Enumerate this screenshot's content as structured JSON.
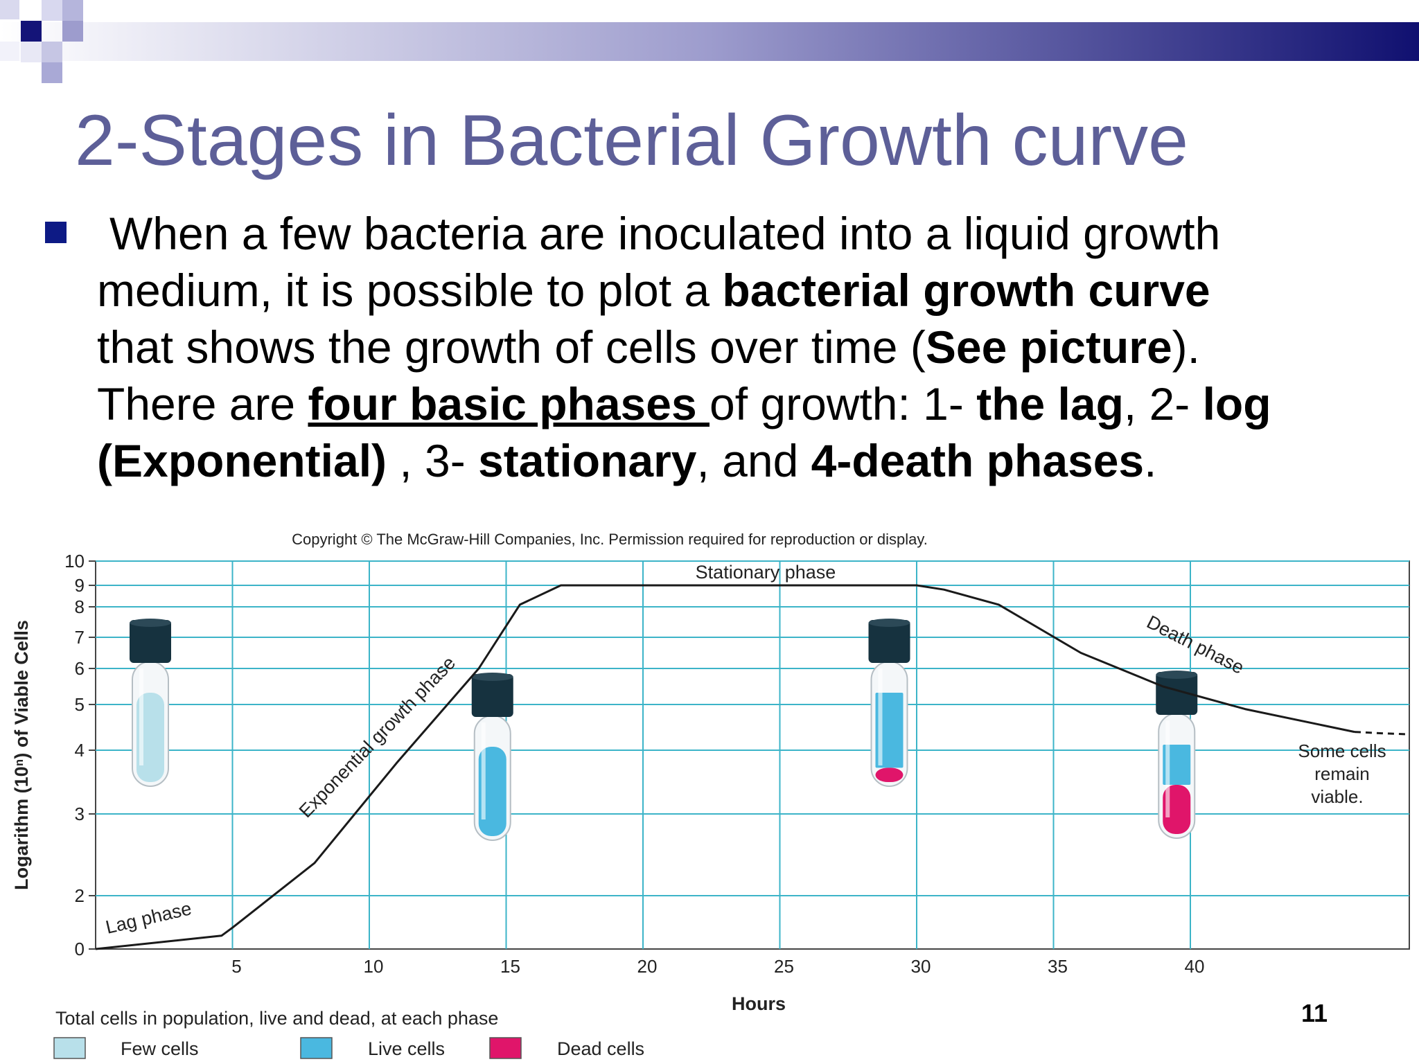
{
  "slide": {
    "title": "2-Stages in Bacterial Growth curve",
    "page_number": "11",
    "body": {
      "l1": "When a few bacteria are inoculated into a liquid growth",
      "l2a": "medium, it is possible to plot a ",
      "l2b": "bacterial growth curve",
      "l3a": "that shows the growth of cells over time (",
      "l3b": "See picture",
      "l3c": ").",
      "l4a": "There are ",
      "l4b": "four basic phases ",
      "l4c": "of growth: 1- ",
      "l4d": "the lag",
      "l4e": ", 2- ",
      "l4f": "log",
      "l5a": "(Exponential)",
      "l5b": " , 3- ",
      "l5c": "stationary",
      "l5d": ", and ",
      "l5e": "4-death phases",
      "l5f": "."
    }
  },
  "colors": {
    "title": "#5d5f98",
    "bullet": "#0d1a85",
    "grid": "#3cb4c8",
    "few_cells": "#b8e0ea",
    "live_cells": "#4ab8e0",
    "dead_cells": "#e0156a"
  },
  "figure": {
    "copyright": "Copyright © The McGraw-Hill Companies, Inc. Permission required for reproduction or display.",
    "ylabel": "Logarithm (10ⁿ) of Viable Cells",
    "xlabel": "Hours",
    "legend_title": "Total cells in population, live and dead, at each phase",
    "legend": [
      {
        "label": "Few cells",
        "color": "#b8e0ea"
      },
      {
        "label": "Live cells",
        "color": "#4ab8e0"
      },
      {
        "label": "Dead cells",
        "color": "#e0156a"
      }
    ],
    "phase_labels": {
      "lag": "Lag phase",
      "exp": "Exponential growth phase",
      "stationary": "Stationary phase",
      "death": "Death phase"
    },
    "annotation": [
      "Some cells",
      "remain",
      "viable."
    ]
  },
  "chart_data": {
    "type": "line",
    "x_ticks": [
      5,
      10,
      15,
      20,
      25,
      30,
      35,
      40
    ],
    "y_ticks": [
      0,
      2,
      3,
      4,
      5,
      6,
      7,
      8,
      9,
      10
    ],
    "xlim": [
      0,
      48
    ],
    "grid": true,
    "series": [
      {
        "x": [
          0,
          4.6,
          5,
          8,
          11,
          14,
          15.5,
          17,
          30,
          31,
          33,
          36,
          39,
          42,
          46
        ],
        "y": [
          0,
          0.5,
          0.8,
          2.4,
          3.8,
          6.0,
          8.1,
          9.0,
          9.0,
          8.8,
          8.1,
          6.5,
          5.5,
          4.9,
          4.4
        ]
      }
    ],
    "extrapolation": {
      "x": [
        46,
        47,
        48
      ],
      "y": [
        4.4,
        4.37,
        4.35
      ],
      "style": "dashed"
    },
    "tubes": [
      {
        "x": 2,
        "contents": [
          {
            "kind": "few",
            "fraction": 1.0
          }
        ]
      },
      {
        "x": 14.5,
        "contents": [
          {
            "kind": "live",
            "fraction": 1.0
          }
        ]
      },
      {
        "x": 29,
        "contents": [
          {
            "kind": "live",
            "fraction": 0.84
          },
          {
            "kind": "dead",
            "fraction": 0.16
          }
        ]
      },
      {
        "x": 39.5,
        "contents": [
          {
            "kind": "live",
            "fraction": 0.45
          },
          {
            "kind": "dead",
            "fraction": 0.55
          }
        ]
      }
    ]
  }
}
